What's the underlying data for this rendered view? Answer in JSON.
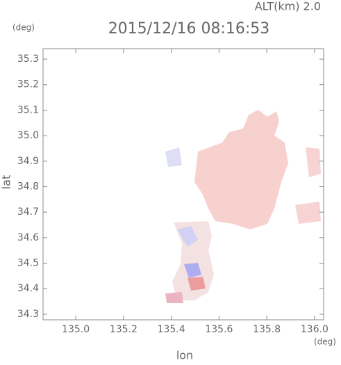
{
  "chart_data": {
    "type": "map",
    "title": "2015/12/16 08:16:53",
    "subtitle": "ALT(km) 2.0",
    "y_unit": "(deg)",
    "x_unit": "(deg)",
    "x_label": "lon",
    "y_label": "lat",
    "xlim": [
      134.863,
      136.038
    ],
    "ylim": [
      34.278,
      35.341
    ],
    "xticks": [
      {
        "value": 135.0,
        "label": "135.0"
      },
      135.2,
      135.4,
      135.6,
      135.8,
      {
        "value": 136.0,
        "label": "136.0"
      }
    ],
    "yticks": [
      35.3,
      35.2,
      35.1,
      {
        "value": 35.0,
        "label": "35.0"
      },
      34.9,
      34.8,
      34.7,
      34.6,
      34.5,
      34.4,
      34.3
    ]
  }
}
